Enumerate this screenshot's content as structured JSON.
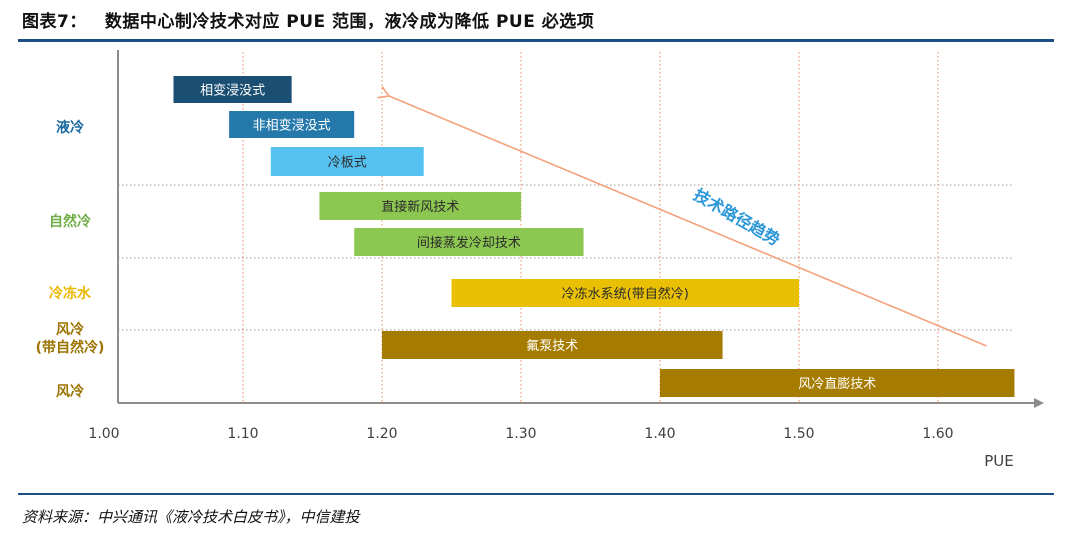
{
  "header": {
    "figure_label": "图表7：",
    "title": "数据中心制冷技术对应 PUE 范围，液冷成为降低 PUE 必选项"
  },
  "footer": {
    "source": "资料来源：中兴通讯《液冷技术白皮书》，中信建投"
  },
  "colors": {
    "brand_rule": "#1d4f84",
    "liquid_dark": "#1a4e73",
    "liquid_mid": "#2579aa",
    "liquid_light": "#55c1f1",
    "natural_green": "#8cc751",
    "chilled_yellow": "#e9c003",
    "air_brown": "#a67c00",
    "trend_orange": "#f4a27c",
    "trend_label": "#2b97d8"
  },
  "chart_data": {
    "type": "range-bar",
    "title": "数据中心制冷技术对应 PUE 范围，液冷成为降低 PUE 必选项",
    "xlabel": "PUE",
    "ylabel": "",
    "xlim": [
      1.0,
      1.65
    ],
    "x_ticks": [
      1.0,
      1.1,
      1.2,
      1.3,
      1.4,
      1.5,
      1.6
    ],
    "x_tick_labels": [
      "1.00",
      "1.10",
      "1.20",
      "1.30",
      "1.40",
      "1.50",
      "1.60"
    ],
    "vertical_gridlines": [
      1.1,
      1.2,
      1.3,
      1.4,
      1.5,
      1.6
    ],
    "categories": [
      {
        "label": [
          "液冷"
        ],
        "color": "#1a6aa0"
      },
      {
        "label": [
          "自然冷"
        ],
        "color": "#70ad47"
      },
      {
        "label": [
          "冷冻水"
        ],
        "color": "#e9b800"
      },
      {
        "label": [
          "风冷",
          "(带自然冷)"
        ],
        "color": "#9c7300"
      },
      {
        "label": [
          "风冷"
        ],
        "color": "#9c7300"
      }
    ],
    "bars": [
      {
        "label": "相变浸没式",
        "category": "液冷",
        "start": 1.05,
        "end": 1.135,
        "color": "#1a4e73"
      },
      {
        "label": "非相变浸没式",
        "category": "液冷",
        "start": 1.09,
        "end": 1.18,
        "color": "#2579aa"
      },
      {
        "label": "冷板式",
        "category": "液冷",
        "start": 1.12,
        "end": 1.23,
        "color": "#55c1f1"
      },
      {
        "label": "直接新风技术",
        "category": "自然冷",
        "start": 1.155,
        "end": 1.3,
        "color": "#8cc751"
      },
      {
        "label": "间接蒸发冷却技术",
        "category": "自然冷",
        "start": 1.18,
        "end": 1.345,
        "color": "#8cc751"
      },
      {
        "label": "冷冻水系统(带自然冷)",
        "category": "冷冻水",
        "start": 1.25,
        "end": 1.5,
        "color": "#e9c003"
      },
      {
        "label": "氟泵技术",
        "category": "风冷(带自然冷)",
        "start": 1.2,
        "end": 1.445,
        "color": "#a67c00"
      },
      {
        "label": "风冷直膨技术",
        "category": "风冷",
        "start": 1.4,
        "end": 1.655,
        "color": "#a67c00"
      }
    ],
    "annotation": {
      "text": "技术路径趋势",
      "arrow_from_pue": 1.635,
      "arrow_to_pue": 1.205,
      "direction": "toward lower PUE"
    }
  }
}
